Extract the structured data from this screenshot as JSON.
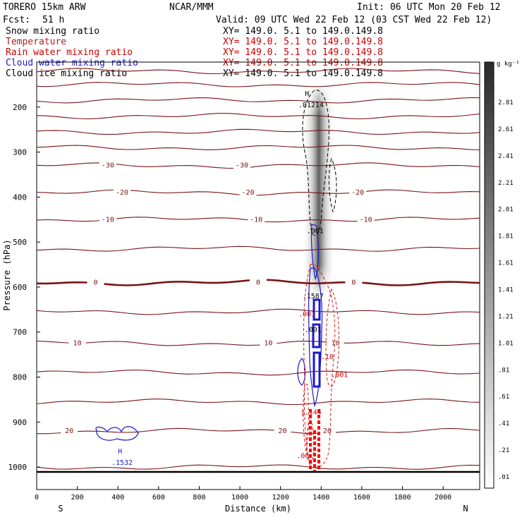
{
  "header": {
    "model": "TORERO  15km ARW",
    "org": "NCAR/MMM",
    "init": "Init: 06 UTC Mon 20 Feb 12",
    "fcst_label": "Fcst:",
    "fcst_value": "51 h",
    "valid": "Valid: 09 UTC Wed 22 Feb 12 (03 CST Wed 22 Feb 12)"
  },
  "fields": [
    {
      "name": "Snow mixing ratio",
      "xy": "XY= 149.0.  5.1 to 149.0.149.8",
      "name_color": "#000000",
      "xy_color": "#000000"
    },
    {
      "name": "Temperature",
      "xy": "XY= 149.0.  5.1 to 149.0.149.8",
      "name_color": "#b22222",
      "xy_color": "#cc0000"
    },
    {
      "name": "Rain water mixing ratio",
      "xy": "XY= 149.0.  5.1 to 149.0.149.8",
      "name_color": "#cc0000",
      "xy_color": "#cc0000"
    },
    {
      "name": "Cloud water mixing ratio",
      "xy": "XY= 149.0.  5.1 to 149.0.149.8",
      "name_color": "#1a1acc",
      "xy_color": "#cc0000"
    },
    {
      "name": "Cloud ice mixing ratio",
      "xy": "XY= 149.0.  5.1 to 149.0.149.8",
      "name_color": "#000000",
      "xy_color": "#000000"
    }
  ],
  "colorbar": {
    "unit": "g kg⁻¹",
    "labels": [
      "2.81",
      "2.61",
      "2.41",
      "2.21",
      "2.01",
      "1.81",
      "1.61",
      "1.41",
      "1.21",
      "1.01",
      ".81",
      ".61",
      ".41",
      ".21",
      ".01"
    ]
  },
  "chart_data": {
    "type": "contour-cross-section",
    "xlabel": "Distance (km)",
    "ylabel": "Pressure (hPa)",
    "xlim": [
      0,
      2180
    ],
    "ylim": [
      1050,
      100
    ],
    "xticks": [
      0,
      200,
      400,
      600,
      800,
      1000,
      1200,
      1400,
      1600,
      1800,
      2000
    ],
    "yticks": [
      200,
      300,
      400,
      500,
      600,
      700,
      800,
      900,
      1000
    ],
    "left_end_label": "S",
    "right_end_label": "N",
    "temperature_isotherm_levels": [
      {
        "p": 1000,
        "label": ""
      },
      {
        "p": 920,
        "label": "20",
        "label_x": [
          160,
          1210,
          1430
        ]
      },
      {
        "p": 855,
        "label": ""
      },
      {
        "p": 790,
        "label": ""
      },
      {
        "p": 725,
        "label": "10",
        "label_x": [
          200,
          1140,
          1470
        ]
      },
      {
        "p": 655,
        "label": ""
      },
      {
        "p": 590,
        "label": "0",
        "label_x": [
          290,
          1090,
          1560
        ],
        "bold": true
      },
      {
        "p": 515,
        "label": ""
      },
      {
        "p": 450,
        "label": "-10",
        "label_x": [
          350,
          1080,
          1620
        ]
      },
      {
        "p": 390,
        "label": "-20",
        "label_x": [
          420,
          1040,
          1580
        ]
      },
      {
        "p": 330,
        "label": "-30",
        "label_x": [
          350,
          1010
        ]
      },
      {
        "p": 290,
        "label": ""
      },
      {
        "p": 255,
        "label": ""
      },
      {
        "p": 220,
        "label": ""
      },
      {
        "p": 185,
        "label": ""
      },
      {
        "p": 150,
        "label": ""
      },
      {
        "p": 120,
        "label": ""
      }
    ],
    "annotations": [
      {
        "text": "H",
        "x": 1330,
        "p": 175,
        "color": "#000000"
      },
      {
        "text": ".01214",
        "x": 1350,
        "p": 200,
        "color": "#000000"
      },
      {
        "text": ".001",
        "x": 1370,
        "p": 480,
        "color": "#000000"
      },
      {
        "text": ".1587",
        "x": 1360,
        "p": 625,
        "color": "#000000"
      },
      {
        "text": ".001",
        "x": 1330,
        "p": 665,
        "color": "#cc0000"
      },
      {
        "text": ".001",
        "x": 1360,
        "p": 700,
        "color": "#000000"
      },
      {
        "text": ".001",
        "x": 1490,
        "p": 800,
        "color": "#cc0000"
      },
      {
        "text": ".10",
        "x": 1430,
        "p": 760,
        "color": "#cc0000"
      },
      {
        "text": "1",
        "x": 1310,
        "p": 885,
        "color": "#cc0000"
      },
      {
        "text": ".144",
        "x": 1360,
        "p": 883,
        "color": "#cc0000"
      },
      {
        "text": ".00",
        "x": 1310,
        "p": 980,
        "color": "#cc0000"
      },
      {
        "text": "H",
        "x": 410,
        "p": 970,
        "color": "#1a1acc"
      },
      {
        "text": ".1532",
        "x": 420,
        "p": 995,
        "color": "#1a1acc"
      }
    ]
  }
}
